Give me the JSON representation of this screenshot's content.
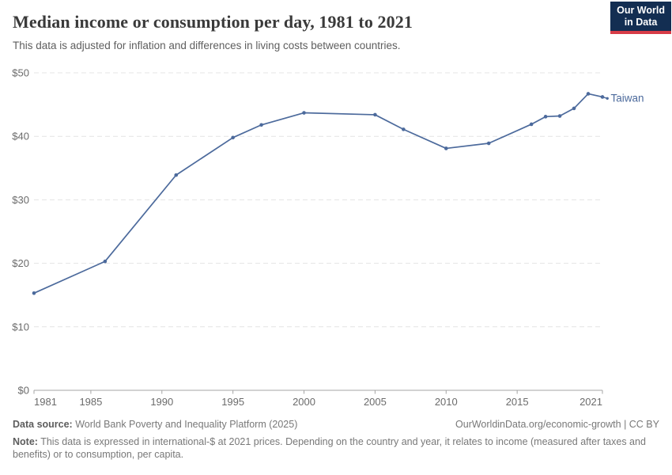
{
  "header": {
    "title": "Median income or consumption per day, 1981 to 2021",
    "subtitle": "This data is adjusted for inflation and differences in living costs between countries.",
    "logo_line1": "Our World",
    "logo_line2": "in Data"
  },
  "chart_data": {
    "type": "line",
    "title": "Median income or consumption per day, 1981 to 2021",
    "xlabel": "",
    "ylabel": "",
    "xlim": [
      1981,
      2021
    ],
    "ylim": [
      0,
      50
    ],
    "x_ticks": [
      1981,
      1985,
      1990,
      1995,
      2000,
      2005,
      2010,
      2015,
      2021
    ],
    "y_ticks": [
      0,
      10,
      20,
      30,
      40,
      50
    ],
    "y_tick_prefix": "$",
    "grid": "horizontal-dashed",
    "legend_position": "end-of-line-label",
    "series": [
      {
        "name": "Taiwan",
        "x": [
          1981,
          1986,
          1991,
          1995,
          1997,
          2000,
          2005,
          2007,
          2010,
          2013,
          2016,
          2017,
          2018,
          2019,
          2020,
          2021
        ],
        "values": [
          15.3,
          20.3,
          33.9,
          39.8,
          41.8,
          43.7,
          43.4,
          41.1,
          38.1,
          38.9,
          41.9,
          43.1,
          43.2,
          44.4,
          46.7,
          46.2
        ]
      }
    ]
  },
  "colors": {
    "series_blue": "#4c6a9c",
    "grid": "#e4e4e4",
    "axis": "#a5a5a5",
    "tick_label": "#6b6b6b",
    "logo_navy": "#132e52",
    "logo_red": "#d73c47"
  },
  "footer": {
    "datasource_label": "Data source:",
    "datasource_value": " World Bank Poverty and Inequality Platform (2025)",
    "credit": "OurWorldinData.org/economic-growth | CC BY",
    "note_label": "Note:",
    "note_value": " This data is expressed in international-$ at 2021 prices. Depending on the country and year, it relates to income (measured after taxes and benefits) or to consumption, per capita."
  }
}
